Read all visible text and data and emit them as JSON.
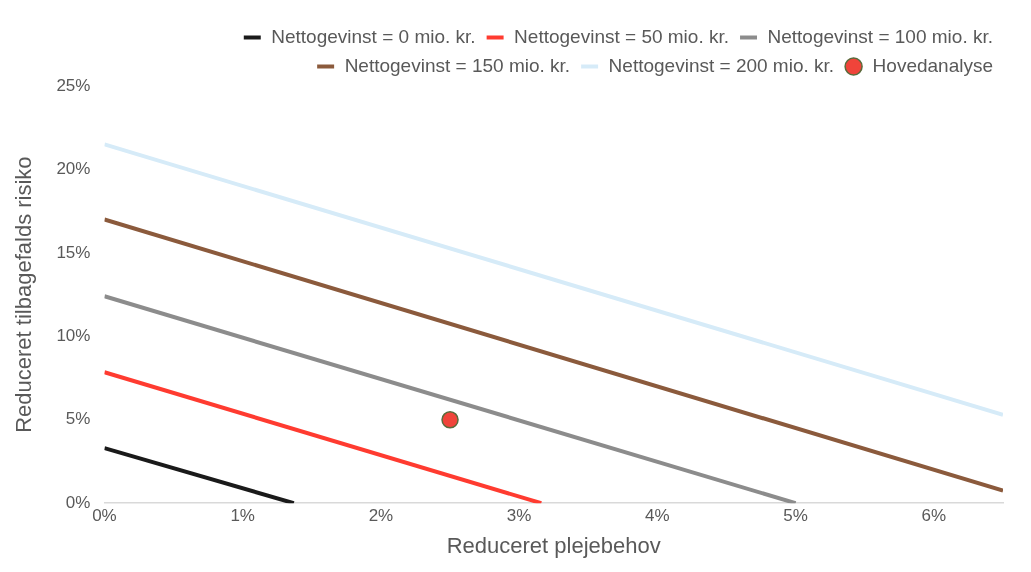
{
  "chart_data": {
    "type": "line",
    "xlabel": "Reduceret plejebehov",
    "ylabel": "Reduceret tilbagefalds risiko",
    "xlim": [
      0,
      6.5
    ],
    "ylim": [
      0,
      25
    ],
    "xticks": [
      {
        "value": 0,
        "label": "0%"
      },
      {
        "value": 1,
        "label": "1%"
      },
      {
        "value": 2,
        "label": "2%"
      },
      {
        "value": 3,
        "label": "3%"
      },
      {
        "value": 4,
        "label": "4%"
      },
      {
        "value": 5,
        "label": "5%"
      },
      {
        "value": 6,
        "label": "6%"
      }
    ],
    "yticks": [
      {
        "value": 0,
        "label": "0%"
      },
      {
        "value": 5,
        "label": "5%"
      },
      {
        "value": 10,
        "label": "10%"
      },
      {
        "value": 15,
        "label": "15%"
      },
      {
        "value": 20,
        "label": "20%"
      },
      {
        "value": 25,
        "label": "25%"
      }
    ],
    "grid": false,
    "legend": "top right",
    "marker": "none",
    "line_style": "solid",
    "series": [
      {
        "name": "Nettogevinst = 0 mio. kr.",
        "color": "#1a1a1a",
        "x": [
          0,
          1.37
        ],
        "values": [
          3.3,
          0
        ]
      },
      {
        "name": "Nettogevinst = 50 mio. kr.",
        "color": "#ff3b30",
        "x": [
          0,
          3.16
        ],
        "values": [
          7.85,
          0
        ]
      },
      {
        "name": "Nettogevinst = 100 mio. kr.",
        "color": "#8c8c8c",
        "x": [
          0,
          5.0
        ],
        "values": [
          12.4,
          0
        ]
      },
      {
        "name": "Nettogevinst = 150 mio. kr.",
        "color": "#8b5a3c",
        "x": [
          0,
          6.5
        ],
        "values": [
          17.0,
          0.75
        ]
      },
      {
        "name": "Nettogevinst = 200 mio. kr.",
        "color": "#d6ebf8",
        "x": [
          0,
          6.5
        ],
        "values": [
          21.5,
          5.3
        ]
      },
      {
        "name": "Hovedanalyse",
        "type": "scatter",
        "marker": "circle",
        "color": "#f0443a",
        "x": [
          2.5
        ],
        "values": [
          5
        ]
      }
    ]
  }
}
